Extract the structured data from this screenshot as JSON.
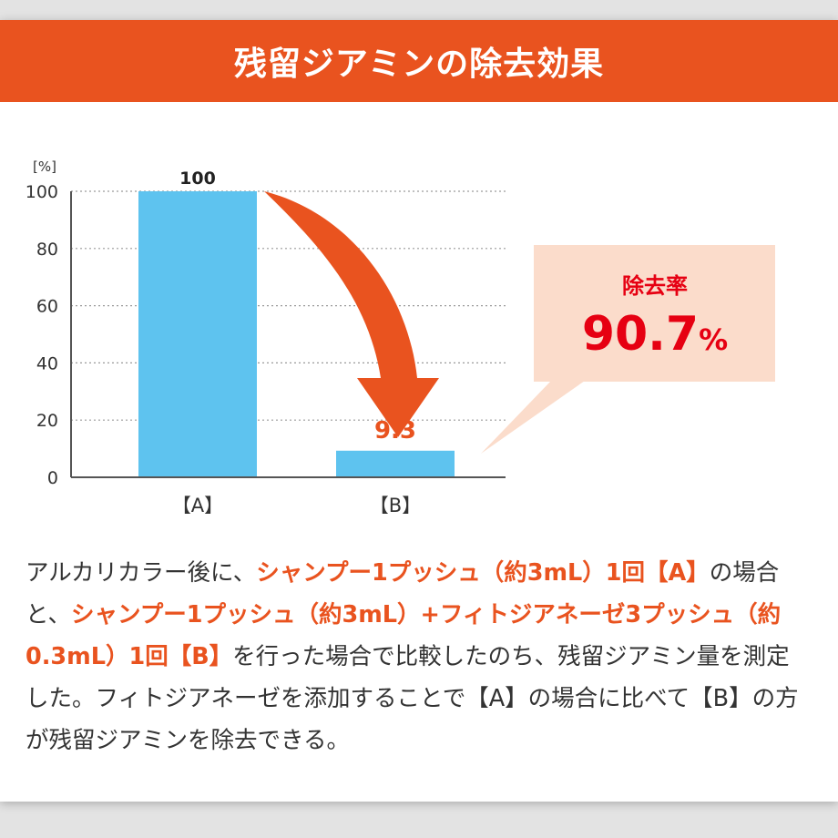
{
  "header": {
    "title": "残留ジアミンの除去効果"
  },
  "chart_data": {
    "type": "bar",
    "unit_label": "[%]",
    "categories": [
      "【A】",
      "【B】"
    ],
    "values": [
      100,
      9.3
    ],
    "value_labels": [
      "100",
      "9.3"
    ],
    "ylim": [
      0,
      100
    ],
    "y_ticks": [
      0,
      20,
      40,
      60,
      80,
      100
    ],
    "grid": true,
    "bar_color": "#5ec3ef",
    "accent_color": "#e9531f",
    "callout": {
      "label": "除去率",
      "value": "90.7",
      "unit": "%",
      "bg_color": "#fbdccb",
      "text_color": "#e60012"
    }
  },
  "description": {
    "segments": [
      {
        "text": "アルカリカラー後に、",
        "highlight": false
      },
      {
        "text": "シャンプー1プッシュ（約3mL）1回【A】",
        "highlight": true
      },
      {
        "text": "の場合と、",
        "highlight": false
      },
      {
        "text": "シャンプー1プッシュ（約3mL）+フィトジアネーゼ3プッシュ（約0.3mL）1回【B】",
        "highlight": true
      },
      {
        "text": "を行った場合で比較したのち、残留ジアミン量を測定した。フィトジアネーゼを添加することで【A】の場合に比べて【B】の方が残留ジアミンを除去できる。",
        "highlight": false
      }
    ]
  }
}
